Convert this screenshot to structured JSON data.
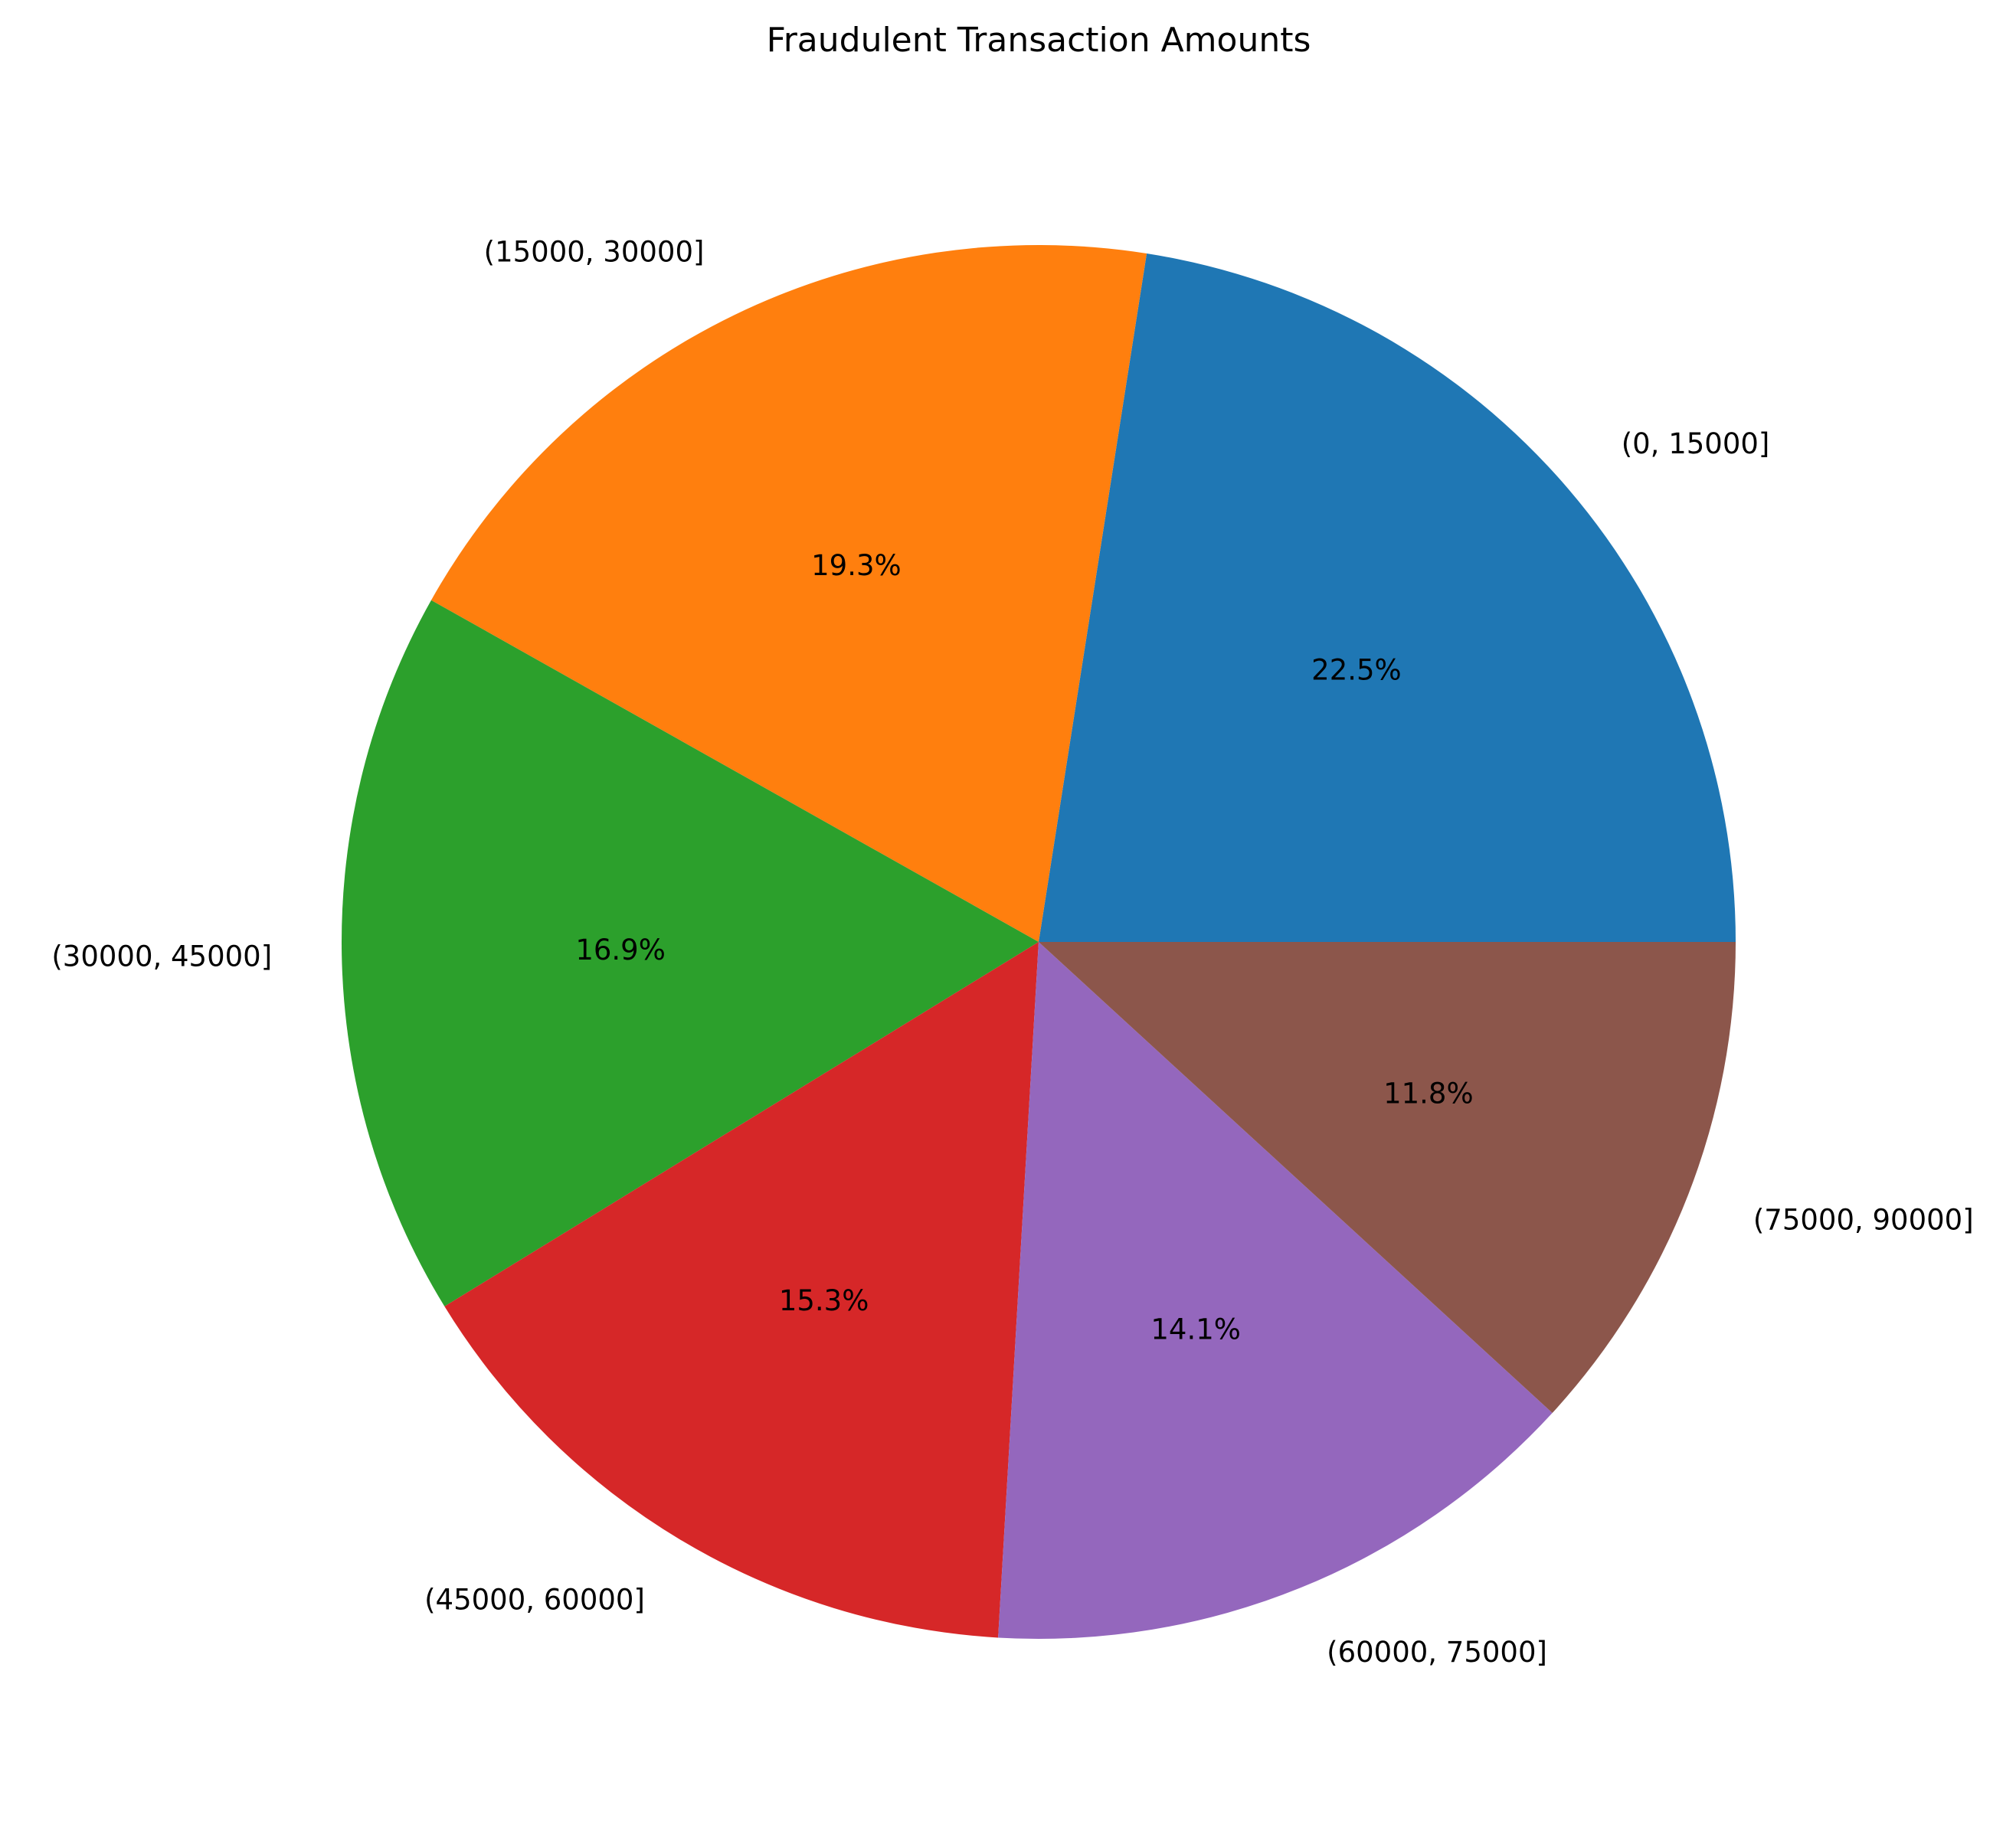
{
  "chart_data": {
    "type": "pie",
    "title": "Fraudulent Transaction Amounts",
    "categories": [
      "(0, 15000]",
      "(15000, 30000]",
      "(30000, 45000]",
      "(45000, 60000]",
      "(60000, 75000]",
      "(75000, 90000]"
    ],
    "values": [
      22.5,
      19.3,
      16.9,
      15.3,
      14.1,
      11.8
    ],
    "value_labels": [
      "22.5%",
      "19.3%",
      "16.9%",
      "15.3%",
      "14.1%",
      "11.8%"
    ],
    "colors": [
      "#1f77b4",
      "#ff7f0e",
      "#2ca02c",
      "#d62728",
      "#9467bd",
      "#8c564b"
    ],
    "start_angle_deg": 0,
    "direction": "counterclockwise",
    "legend": "none"
  }
}
